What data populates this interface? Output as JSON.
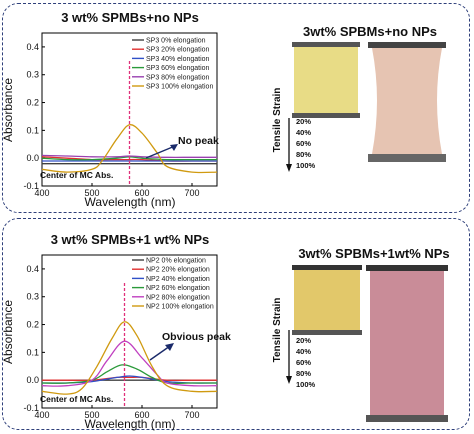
{
  "chart_data": [
    {
      "type": "line",
      "title": "3 wt% SPMBs+no NPs",
      "xlabel": "Wavelength (nm)",
      "ylabel": "Absorbance",
      "xlim": [
        400,
        750
      ],
      "ylim": [
        -0.1,
        0.45
      ],
      "xticks": [
        "400",
        "500",
        "600",
        "700"
      ],
      "yticks": [
        "-0.1",
        "0.0",
        "0.1",
        "0.2",
        "0.3",
        "0.4"
      ],
      "legend_position": "top-right",
      "grid": false,
      "series": [
        {
          "name": "SP3 0%     elongation",
          "color": "#404040",
          "x": [
            400,
            450,
            500,
            550,
            575,
            600,
            650,
            700,
            750
          ],
          "values": [
            -0.02,
            -0.02,
            -0.02,
            -0.02,
            -0.02,
            -0.02,
            -0.02,
            -0.02,
            -0.02
          ]
        },
        {
          "name": "SP3 20%   elongation",
          "color": "#e03030",
          "x": [
            400,
            450,
            500,
            550,
            575,
            600,
            650,
            700,
            750
          ],
          "values": [
            0.005,
            0.0,
            -0.005,
            -0.005,
            -0.005,
            -0.005,
            -0.01,
            -0.01,
            -0.01
          ]
        },
        {
          "name": "SP3 40%   elongation",
          "color": "#3050c8",
          "x": [
            400,
            450,
            500,
            550,
            575,
            600,
            650,
            700,
            750
          ],
          "values": [
            -0.01,
            -0.01,
            -0.01,
            -0.01,
            -0.01,
            -0.01,
            -0.01,
            -0.01,
            -0.01
          ]
        },
        {
          "name": "SP3 60%   elongation",
          "color": "#2a9a3a",
          "x": [
            400,
            450,
            500,
            550,
            575,
            600,
            650,
            700,
            750
          ],
          "values": [
            0.0,
            -0.005,
            -0.005,
            0.0,
            0.005,
            0.0,
            -0.005,
            -0.005,
            -0.005
          ]
        },
        {
          "name": "SP3 80%   elongation",
          "color": "#9a40b0",
          "x": [
            400,
            450,
            500,
            550,
            575,
            600,
            650,
            700,
            750
          ],
          "values": [
            0.01,
            0.008,
            0.005,
            0.005,
            0.008,
            0.005,
            0.003,
            0.003,
            0.003
          ]
        },
        {
          "name": "SP3 100% elongation",
          "color": "#d09a10",
          "x": [
            400,
            450,
            500,
            520,
            550,
            575,
            600,
            630,
            650,
            700,
            750
          ],
          "values": [
            -0.04,
            -0.05,
            -0.04,
            -0.01,
            0.07,
            0.12,
            0.09,
            0.02,
            -0.03,
            -0.05,
            -0.05
          ]
        }
      ],
      "annotations": [
        "No peak",
        "Center of MC Abs."
      ],
      "marker_x": 575
    },
    {
      "type": "line",
      "title": "3 wt% SPMBs+1 wt% NPs",
      "xlabel": "Wavelength (nm)",
      "ylabel": "Absorbance",
      "xlim": [
        400,
        750
      ],
      "ylim": [
        -0.1,
        0.45
      ],
      "xticks": [
        "400",
        "500",
        "600",
        "700"
      ],
      "yticks": [
        "-0.1",
        "0.0",
        "0.1",
        "0.2",
        "0.3",
        "0.4"
      ],
      "legend_position": "top-right",
      "grid": false,
      "series": [
        {
          "name": "NP2 0%     elongation",
          "color": "#404040",
          "x": [
            400,
            450,
            500,
            550,
            575,
            600,
            650,
            700,
            750
          ],
          "values": [
            0.0,
            0.0,
            0.0,
            0.0,
            0.0,
            0.0,
            0.0,
            0.0,
            0.0
          ]
        },
        {
          "name": "NP2 20%   elongation",
          "color": "#e03030",
          "x": [
            400,
            450,
            500,
            550,
            575,
            600,
            650,
            700,
            750
          ],
          "values": [
            0.0,
            0.0,
            0.0,
            0.01,
            0.01,
            0.01,
            0.0,
            0.0,
            0.0
          ]
        },
        {
          "name": "NP2 40%   elongation",
          "color": "#3050c8",
          "x": [
            400,
            450,
            500,
            550,
            575,
            600,
            650,
            700,
            750
          ],
          "values": [
            -0.01,
            -0.01,
            -0.005,
            0.01,
            0.015,
            0.01,
            -0.005,
            -0.01,
            -0.01
          ]
        },
        {
          "name": "NP2 60%   elongation",
          "color": "#2a9a3a",
          "x": [
            400,
            450,
            500,
            530,
            560,
            590,
            620,
            650,
            700,
            750
          ],
          "values": [
            -0.01,
            -0.01,
            0.0,
            0.03,
            0.055,
            0.04,
            0.01,
            -0.01,
            -0.01,
            -0.01
          ]
        },
        {
          "name": "NP2 80%   elongation",
          "color": "#c040c0",
          "x": [
            400,
            450,
            500,
            530,
            565,
            600,
            630,
            650,
            700,
            750
          ],
          "values": [
            -0.02,
            -0.02,
            0.0,
            0.07,
            0.14,
            0.08,
            0.02,
            -0.01,
            -0.02,
            -0.02
          ]
        },
        {
          "name": "NP2 100% elongation",
          "color": "#d09a10",
          "x": [
            400,
            450,
            480,
            510,
            540,
            565,
            590,
            620,
            650,
            700,
            750
          ],
          "values": [
            -0.04,
            -0.05,
            -0.03,
            0.05,
            0.15,
            0.21,
            0.16,
            0.05,
            -0.02,
            -0.04,
            -0.04
          ]
        }
      ],
      "annotations": [
        "Obvious peak",
        "Center of MC Abs."
      ],
      "marker_x": 565
    }
  ],
  "photos": [
    {
      "title": "3wt% SPBMs+no NPs",
      "axis_label": "Tensile Strain",
      "strain_labels": [
        "20%",
        "40%",
        "60%",
        "80%",
        "100%"
      ],
      "left_color": "#e8dc86",
      "right_color": "#e6c4b2"
    },
    {
      "title": "3wt% SPBMs+1wt% NPs",
      "axis_label": "Tensile Strain",
      "strain_labels": [
        "20%",
        "40%",
        "60%",
        "80%",
        "100%"
      ],
      "left_color": "#e2c86a",
      "right_color": "#c98c98"
    }
  ]
}
